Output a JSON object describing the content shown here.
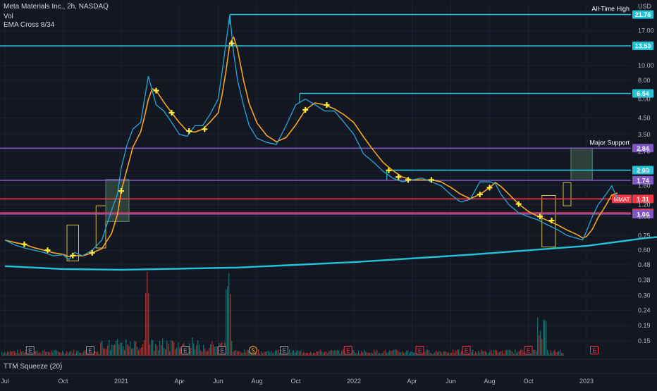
{
  "header": {
    "symbol_line": "Meta Materials Inc., 2h, NASDAQ",
    "indicator_vol": "Vol",
    "indicator_ema": "EMA Cross 8/34"
  },
  "currency_label": "USD",
  "lower_panel_label": "TTM Squeeze (20)",
  "colors": {
    "background": "#131722",
    "cyan_level": "#22c3d6",
    "purple_level": "#7e57c2",
    "red_level": "#f23645",
    "price_line": "#26a7d8",
    "ema_fast": "#f5a623",
    "cross_marker": "#ffeb3b",
    "box_yellow": "#d4c04a",
    "box_green": "#5b8a6a"
  },
  "chart_data": {
    "type": "line",
    "title": "Meta Materials Inc., 2h, NASDAQ",
    "y_scale": "log",
    "ylim": [
      0.12,
      26
    ],
    "x_ticks": [
      "Jul",
      "Oct",
      "2021",
      "Apr",
      "Jun",
      "Aug",
      "Oct",
      "2022",
      "Apr",
      "Jun",
      "Aug",
      "Oct",
      "2023"
    ],
    "y_ticks": [
      17.0,
      10.0,
      8.0,
      6.0,
      4.5,
      3.5,
      2.7,
      2.0,
      1.6,
      1.2,
      1.0,
      0.75,
      0.6,
      0.48,
      0.38,
      0.3,
      0.24,
      0.19,
      0.15
    ],
    "y_tick_labels": [
      "17.00",
      "10.00",
      "8.00",
      "6.00",
      "4.50",
      "3.50",
      "2.70",
      "2.00",
      "1.60",
      "1.20",
      "1.00",
      "0.75",
      "0.60",
      "0.48",
      "0.38",
      "0.30",
      "0.24",
      "0.19",
      "0.15"
    ],
    "series": [
      {
        "values_by_month_index": [
          [
            0,
            0.7
          ],
          [
            0.5,
            0.65
          ],
          [
            1,
            0.62
          ],
          [
            1.5,
            0.6
          ],
          [
            2,
            0.58
          ],
          [
            2.5,
            0.55
          ],
          [
            3,
            0.56
          ],
          [
            3.3,
            0.52
          ],
          [
            3.6,
            0.58
          ],
          [
            4,
            0.55
          ],
          [
            4.5,
            0.6
          ],
          [
            5,
            0.7
          ],
          [
            5.5,
            1.1
          ],
          [
            5.8,
            1.4
          ],
          [
            6,
            2.1
          ],
          [
            6.3,
            3.0
          ],
          [
            6.6,
            3.8
          ],
          [
            7,
            4.2
          ],
          [
            7.2,
            6.0
          ],
          [
            7.4,
            8.5
          ],
          [
            7.6,
            6.8
          ],
          [
            7.8,
            5.5
          ],
          [
            8.2,
            5.0
          ],
          [
            8.6,
            4.2
          ],
          [
            9,
            3.5
          ],
          [
            9.4,
            3.4
          ],
          [
            9.8,
            4.0
          ],
          [
            10.2,
            4.0
          ],
          [
            10.6,
            4.8
          ],
          [
            11,
            6.0
          ],
          [
            11.2,
            9.0
          ],
          [
            11.4,
            14.0
          ],
          [
            11.6,
            21.76
          ],
          [
            11.8,
            12.0
          ],
          [
            12,
            8.0
          ],
          [
            12.3,
            5.5
          ],
          [
            12.6,
            4.0
          ],
          [
            13,
            3.3
          ],
          [
            13.5,
            3.1
          ],
          [
            14,
            3.0
          ],
          [
            14.5,
            4.0
          ],
          [
            15,
            5.5
          ],
          [
            15.5,
            6.0
          ],
          [
            16,
            5.5
          ],
          [
            16.5,
            5.0
          ],
          [
            17,
            5.0
          ],
          [
            17.5,
            4.2
          ],
          [
            18,
            3.5
          ],
          [
            18.5,
            2.6
          ],
          [
            19,
            2.3
          ],
          [
            19.5,
            2.0
          ],
          [
            20,
            1.8
          ],
          [
            20.5,
            1.7
          ],
          [
            21,
            1.75
          ],
          [
            21.5,
            1.8
          ],
          [
            22,
            1.7
          ],
          [
            22.5,
            1.6
          ],
          [
            23,
            1.4
          ],
          [
            23.5,
            1.25
          ],
          [
            24,
            1.3
          ],
          [
            24.5,
            1.7
          ],
          [
            25,
            1.7
          ],
          [
            25.3,
            1.65
          ],
          [
            25.6,
            1.4
          ],
          [
            26,
            1.2
          ],
          [
            26.5,
            1.06
          ],
          [
            27,
            1.0
          ],
          [
            27.5,
            0.95
          ],
          [
            28,
            0.88
          ],
          [
            28.5,
            0.82
          ],
          [
            29,
            0.75
          ],
          [
            29.5,
            0.72
          ],
          [
            29.8,
            0.7
          ],
          [
            30,
            0.8
          ],
          [
            30.3,
            1.0
          ],
          [
            30.6,
            1.2
          ],
          [
            31,
            1.4
          ],
          [
            31.3,
            1.6
          ],
          [
            31.6,
            1.31
          ]
        ]
      }
    ],
    "support_curve": [
      [
        0,
        0.47
      ],
      [
        3,
        0.45
      ],
      [
        6,
        0.445
      ],
      [
        12,
        0.46
      ],
      [
        18,
        0.5
      ],
      [
        24,
        0.56
      ],
      [
        30,
        0.64
      ],
      [
        33,
        0.72
      ],
      [
        35,
        0.76
      ]
    ],
    "levels": [
      {
        "label": "21.76",
        "value": 21.76,
        "color": "cyan",
        "annotation": "All-Time High"
      },
      {
        "label": "13.50",
        "value": 13.5,
        "color": "cyan"
      },
      {
        "label": "6.54",
        "value": 6.54,
        "color": "cyan"
      },
      {
        "label": "2.84",
        "value": 2.84,
        "color": "purple",
        "annotation": "Major Support"
      },
      {
        "label": "2.03",
        "value": 2.03,
        "color": "cyan"
      },
      {
        "label": "1.74",
        "value": 1.74,
        "color": "purple"
      },
      {
        "label": "1.31",
        "value": 1.31,
        "color": "red",
        "ticker": "MMAT"
      },
      {
        "label": "1.06",
        "value": 1.06,
        "color": "red"
      },
      {
        "label": "1.04",
        "value": 1.04,
        "color": "purple"
      }
    ],
    "earnings_markers": [
      {
        "month_index": 1.3,
        "label": "E",
        "style": "gray"
      },
      {
        "month_index": 4.4,
        "label": "E",
        "style": "gray"
      },
      {
        "month_index": 9.3,
        "label": "E",
        "style": "gray"
      },
      {
        "month_index": 11.2,
        "label": "E",
        "style": "gray"
      },
      {
        "month_index": 12.8,
        "label": "S",
        "style": "orange"
      },
      {
        "month_index": 14.4,
        "label": "E",
        "style": "gray"
      },
      {
        "month_index": 17.7,
        "label": "E",
        "style": "red"
      },
      {
        "month_index": 21.4,
        "label": "E",
        "style": "red"
      },
      {
        "month_index": 23.8,
        "label": "E",
        "style": "red"
      },
      {
        "month_index": 27.0,
        "label": "E",
        "style": "red"
      },
      {
        "month_index": 30.4,
        "label": "E",
        "style": "red"
      }
    ]
  }
}
